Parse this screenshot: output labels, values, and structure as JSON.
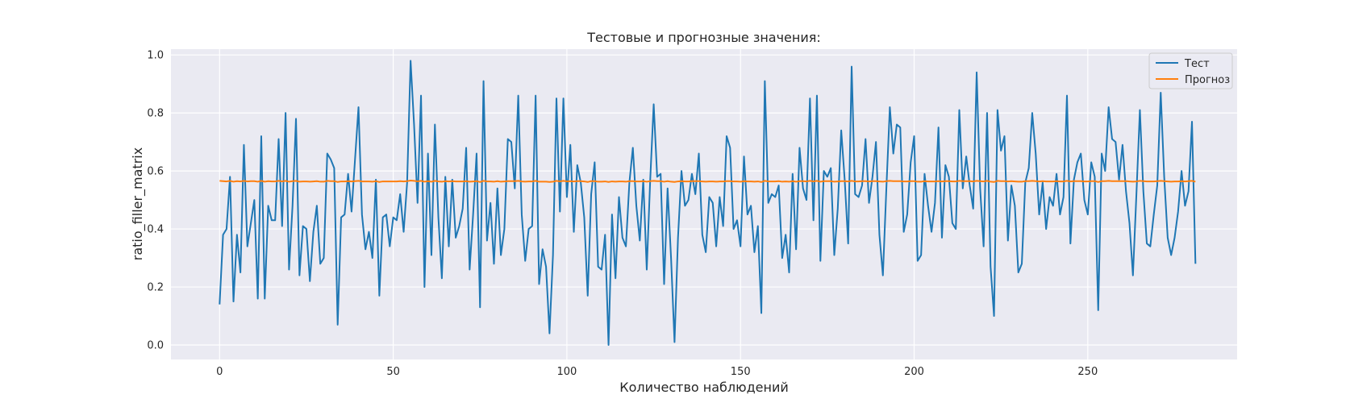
{
  "chart_data": {
    "type": "line",
    "title": "Тестовые и прогнозные значения:",
    "xlabel": "Количество наблюдений",
    "ylabel": "ratio_filler_matrix",
    "xlim": [
      -14,
      293
    ],
    "ylim": [
      -0.05,
      1.02
    ],
    "xticks": [
      0,
      50,
      100,
      150,
      200,
      250
    ],
    "yticks": [
      0.0,
      0.2,
      0.4,
      0.6,
      0.8,
      1.0
    ],
    "grid": true,
    "legend_position": "top-right",
    "series": [
      {
        "name": "Тест",
        "color": "#1f77b4",
        "values": [
          0.14,
          0.38,
          0.4,
          0.58,
          0.15,
          0.38,
          0.25,
          0.69,
          0.34,
          0.42,
          0.5,
          0.16,
          0.72,
          0.16,
          0.48,
          0.43,
          0.43,
          0.71,
          0.41,
          0.8,
          0.26,
          0.48,
          0.78,
          0.24,
          0.41,
          0.4,
          0.22,
          0.39,
          0.48,
          0.28,
          0.3,
          0.66,
          0.64,
          0.61,
          0.07,
          0.44,
          0.45,
          0.59,
          0.46,
          0.64,
          0.82,
          0.45,
          0.33,
          0.39,
          0.3,
          0.57,
          0.17,
          0.44,
          0.45,
          0.34,
          0.44,
          0.43,
          0.52,
          0.39,
          0.56,
          0.98,
          0.76,
          0.49,
          0.86,
          0.2,
          0.66,
          0.31,
          0.76,
          0.44,
          0.23,
          0.58,
          0.34,
          0.57,
          0.37,
          0.41,
          0.47,
          0.68,
          0.26,
          0.45,
          0.66,
          0.13,
          0.91,
          0.36,
          0.49,
          0.28,
          0.54,
          0.31,
          0.4,
          0.71,
          0.7,
          0.54,
          0.86,
          0.45,
          0.29,
          0.4,
          0.41,
          0.86,
          0.21,
          0.33,
          0.27,
          0.04,
          0.31,
          0.85,
          0.46,
          0.85,
          0.51,
          0.69,
          0.39,
          0.62,
          0.56,
          0.44,
          0.17,
          0.52,
          0.63,
          0.27,
          0.26,
          0.38,
          0.0,
          0.45,
          0.23,
          0.51,
          0.37,
          0.34,
          0.56,
          0.68,
          0.48,
          0.36,
          0.57,
          0.26,
          0.57,
          0.83,
          0.58,
          0.59,
          0.21,
          0.54,
          0.3,
          0.01,
          0.37,
          0.6,
          0.48,
          0.5,
          0.59,
          0.52,
          0.66,
          0.38,
          0.32,
          0.51,
          0.49,
          0.34,
          0.51,
          0.41,
          0.72,
          0.68,
          0.4,
          0.43,
          0.34,
          0.65,
          0.45,
          0.48,
          0.32,
          0.41,
          0.11,
          0.91,
          0.49,
          0.52,
          0.51,
          0.55,
          0.3,
          0.38,
          0.25,
          0.59,
          0.33,
          0.68,
          0.54,
          0.5,
          0.85,
          0.43,
          0.86,
          0.29,
          0.6,
          0.58,
          0.61,
          0.31,
          0.47,
          0.74,
          0.57,
          0.35,
          0.96,
          0.52,
          0.51,
          0.55,
          0.71,
          0.49,
          0.58,
          0.7,
          0.38,
          0.24,
          0.54,
          0.82,
          0.66,
          0.76,
          0.75,
          0.39,
          0.45,
          0.63,
          0.72,
          0.29,
          0.31,
          0.59,
          0.48,
          0.39,
          0.49,
          0.75,
          0.37,
          0.62,
          0.58,
          0.42,
          0.4,
          0.81,
          0.54,
          0.65,
          0.55,
          0.47,
          0.94,
          0.54,
          0.34,
          0.8,
          0.27,
          0.1,
          0.81,
          0.67,
          0.72,
          0.36,
          0.55,
          0.48,
          0.25,
          0.28,
          0.56,
          0.61,
          0.8,
          0.66,
          0.45,
          0.56,
          0.4,
          0.51,
          0.48,
          0.59,
          0.45,
          0.51,
          0.86,
          0.35,
          0.57,
          0.63,
          0.66,
          0.5,
          0.45,
          0.63,
          0.58,
          0.12,
          0.66,
          0.6,
          0.82,
          0.71,
          0.7,
          0.57,
          0.69,
          0.53,
          0.42,
          0.24,
          0.52,
          0.81,
          0.53,
          0.35,
          0.34,
          0.45,
          0.55,
          0.87,
          0.58,
          0.37,
          0.31,
          0.37,
          0.46,
          0.6,
          0.48,
          0.53,
          0.77,
          0.28
        ]
      },
      {
        "name": "Прогноз",
        "color": "#ff7f0e",
        "values": [
          0.566,
          0.565,
          0.564,
          0.566,
          0.563,
          0.565,
          0.564,
          0.566,
          0.564,
          0.565,
          0.565,
          0.563,
          0.566,
          0.563,
          0.565,
          0.564,
          0.564,
          0.566,
          0.564,
          0.566,
          0.563,
          0.565,
          0.566,
          0.563,
          0.564,
          0.564,
          0.563,
          0.564,
          0.565,
          0.563,
          0.563,
          0.566,
          0.565,
          0.565,
          0.562,
          0.564,
          0.564,
          0.565,
          0.564,
          0.565,
          0.566,
          0.564,
          0.564,
          0.564,
          0.563,
          0.565,
          0.562,
          0.564,
          0.564,
          0.564,
          0.564,
          0.564,
          0.565,
          0.564,
          0.565,
          0.567,
          0.566,
          0.564,
          0.566,
          0.563,
          0.565,
          0.563,
          0.566,
          0.564,
          0.563,
          0.565,
          0.564,
          0.565,
          0.564,
          0.564,
          0.564,
          0.565,
          0.563,
          0.564,
          0.565,
          0.562,
          0.566,
          0.564,
          0.564,
          0.563,
          0.565,
          0.563,
          0.564,
          0.565,
          0.565,
          0.565,
          0.566,
          0.564,
          0.563,
          0.564,
          0.564,
          0.566,
          0.563,
          0.563,
          0.563,
          0.562,
          0.563,
          0.566,
          0.564,
          0.566,
          0.564,
          0.565,
          0.564,
          0.565,
          0.565,
          0.564,
          0.562,
          0.565,
          0.565,
          0.563,
          0.563,
          0.564,
          0.562,
          0.564,
          0.563,
          0.564,
          0.564,
          0.563,
          0.565,
          0.565,
          0.564,
          0.564,
          0.565,
          0.563,
          0.565,
          0.566,
          0.565,
          0.565,
          0.563,
          0.565,
          0.563,
          0.562,
          0.564,
          0.565,
          0.564,
          0.564,
          0.565,
          0.565,
          0.565,
          0.564,
          0.563,
          0.564,
          0.564,
          0.563,
          0.564,
          0.564,
          0.565,
          0.565,
          0.564,
          0.564,
          0.563,
          0.565,
          0.564,
          0.564,
          0.563,
          0.564,
          0.562,
          0.566,
          0.564,
          0.564,
          0.564,
          0.565,
          0.563,
          0.564,
          0.563,
          0.565,
          0.563,
          0.565,
          0.565,
          0.564,
          0.566,
          0.564,
          0.566,
          0.563,
          0.565,
          0.565,
          0.565,
          0.563,
          0.564,
          0.565,
          0.565,
          0.564,
          0.566,
          0.564,
          0.564,
          0.565,
          0.565,
          0.564,
          0.565,
          0.565,
          0.564,
          0.563,
          0.565,
          0.566,
          0.565,
          0.565,
          0.565,
          0.564,
          0.564,
          0.565,
          0.565,
          0.563,
          0.563,
          0.565,
          0.564,
          0.564,
          0.564,
          0.565,
          0.564,
          0.565,
          0.565,
          0.564,
          0.564,
          0.566,
          0.565,
          0.565,
          0.565,
          0.564,
          0.566,
          0.565,
          0.564,
          0.566,
          0.563,
          0.562,
          0.566,
          0.565,
          0.565,
          0.564,
          0.565,
          0.564,
          0.563,
          0.563,
          0.565,
          0.565,
          0.566,
          0.565,
          0.564,
          0.565,
          0.564,
          0.564,
          0.564,
          0.565,
          0.564,
          0.564,
          0.566,
          0.564,
          0.565,
          0.565,
          0.565,
          0.564,
          0.564,
          0.565,
          0.565,
          0.562,
          0.565,
          0.565,
          0.566,
          0.565,
          0.565,
          0.565,
          0.565,
          0.565,
          0.564,
          0.563,
          0.564,
          0.566,
          0.565,
          0.564,
          0.564,
          0.564,
          0.565,
          0.566,
          0.565,
          0.564,
          0.563,
          0.564,
          0.564,
          0.565,
          0.564,
          0.565,
          0.566,
          0.563
        ]
      }
    ]
  }
}
